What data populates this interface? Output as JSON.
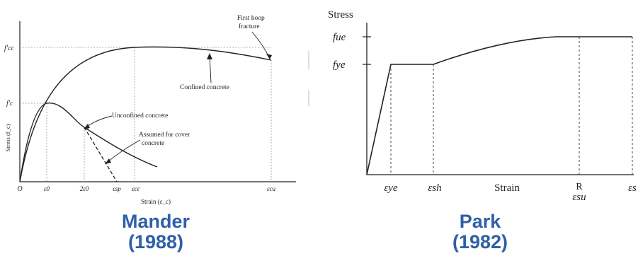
{
  "mander": {
    "caption_name": "Mander",
    "caption_year": "(1988)",
    "y_axis_label": "Stress (f_c)",
    "x_axis_label": "Strain (ε_c)",
    "y_ticks": {
      "fcc": "f′cc",
      "fc": "f′c"
    },
    "x_ticks": {
      "origin": "O",
      "e0": "ε0",
      "two_e0": "2ε0",
      "esp": "εsp",
      "ecc": "εcc",
      "ecu": "εcu"
    },
    "annotations": {
      "first_hoop_line1": "First hoop",
      "first_hoop_line2": "fracture",
      "confined": "Confined concrete",
      "unconfined": "Unconfined concrete",
      "cover_line1": "Assumed for cover",
      "cover_line2": "concrete"
    }
  },
  "park": {
    "caption_name": "Park",
    "caption_year": "(1982)",
    "y_axis_label": "Stress",
    "x_axis_label": "Strain",
    "y_ticks": {
      "fue": "fue",
      "fye": "fye"
    },
    "x_ticks": {
      "eye": "εye",
      "esh": "εsh",
      "r": "R",
      "esu": "εsu",
      "es": "εs"
    }
  },
  "colors": {
    "caption": "#2f5fa7",
    "line": "#222222",
    "grid": "#999999"
  }
}
